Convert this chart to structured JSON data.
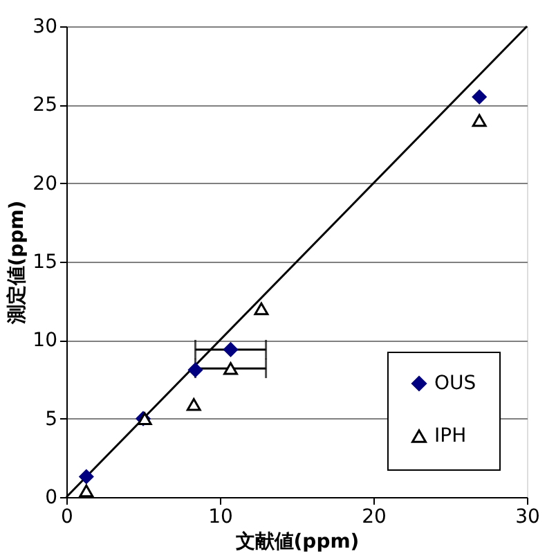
{
  "chart_data": {
    "type": "scatter",
    "xlabel": "文献値(ppm)",
    "ylabel": "測定値(ppm)",
    "xlim": [
      0,
      30
    ],
    "xticks": [
      0,
      10,
      20,
      30
    ],
    "ylim": [
      0,
      30
    ],
    "yticks": [
      0,
      5,
      10,
      15,
      20,
      25,
      30
    ],
    "grid": "y",
    "legend": "bottom right",
    "series": [
      {
        "name": "OUS",
        "color": "#000080",
        "marker": "diamond",
        "x": [
          1.3,
          5.0,
          8.4,
          10.7,
          26.9
        ],
        "values": [
          1.3,
          5.0,
          8.1,
          9.4,
          25.5
        ],
        "xerrors": [
          null,
          null,
          null,
          2.3,
          null
        ]
      },
      {
        "name": "IPH",
        "color": "#000000",
        "marker": "triangle",
        "x": [
          1.3,
          5.1,
          8.3,
          10.7,
          12.7,
          26.9
        ],
        "values": [
          0.4,
          5.0,
          5.9,
          8.2,
          12.0,
          24.0
        ],
        "xerrors": [
          null,
          null,
          null,
          2.3,
          null,
          null
        ]
      },
      {
        "type": "line",
        "color": "#000000",
        "x": [
          0,
          30
        ],
        "values": [
          0,
          30
        ],
        "marker": "none"
      }
    ]
  }
}
